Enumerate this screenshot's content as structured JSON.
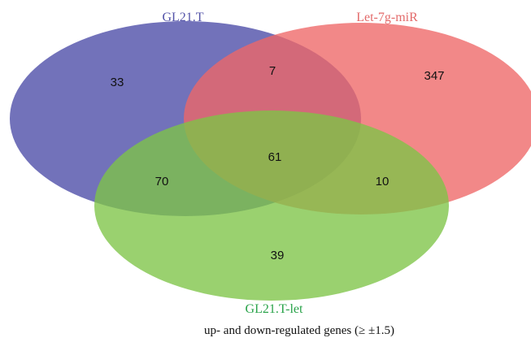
{
  "sets": {
    "a": {
      "label": "GL21.T",
      "color": "#4a4aa6"
    },
    "b": {
      "label": "Let-7g-miR",
      "color": "#ee6767"
    },
    "c": {
      "label": "GL21.T-let",
      "color": "#7dc447"
    }
  },
  "label_colors": {
    "a": "#5353a8",
    "b": "#e36a6a",
    "c": "#2aa34a"
  },
  "regions": {
    "a_only": "33",
    "ab": "7",
    "b_only": "347",
    "ac": "70",
    "abc": "61",
    "bc": "10",
    "c_only": "39"
  },
  "caption": "up- and down-regulated genes  (≥ ±1.5)"
}
